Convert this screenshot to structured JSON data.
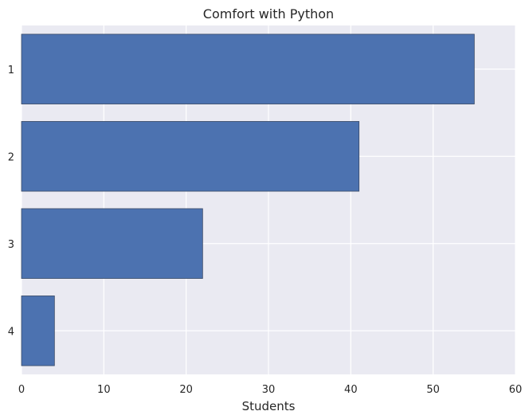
{
  "chart_data": {
    "type": "bar",
    "orientation": "horizontal",
    "title": "Comfort with Python",
    "xlabel": "Students",
    "ylabel": "",
    "categories": [
      "1",
      "2",
      "3",
      "4"
    ],
    "values": [
      55,
      41,
      22,
      4
    ],
    "xlim": [
      0,
      60
    ],
    "xticks": [
      0,
      10,
      20,
      30,
      40,
      50,
      60
    ],
    "grid": true,
    "bar_color": "#4c72b0",
    "background_color": "#eaeaf2",
    "grid_color": "#ffffff"
  }
}
